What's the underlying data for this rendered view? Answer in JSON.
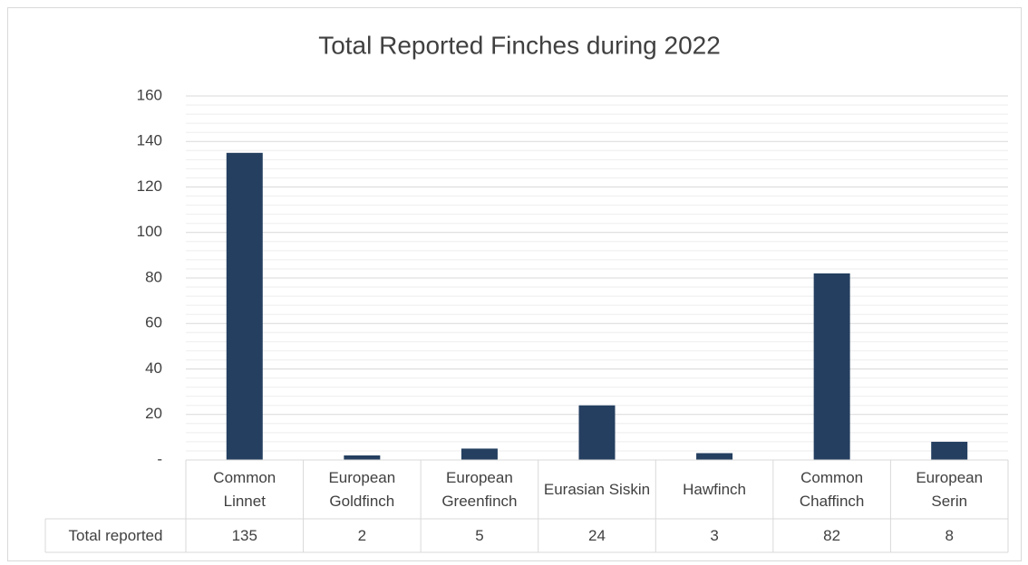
{
  "chart_data": {
    "type": "bar",
    "title": "Total Reported Finches during 2022",
    "categories": [
      "Common Linnet",
      "European Goldfinch",
      "European Greenfinch",
      "Eurasian Siskin",
      "Hawfinch",
      "Common Chaffinch",
      "European Serin"
    ],
    "series": [
      {
        "name": "Total reported",
        "color": "#243F60",
        "values": [
          135,
          2,
          5,
          24,
          3,
          82,
          8
        ]
      }
    ],
    "ylim": [
      0,
      160
    ],
    "yticks": [
      {
        "value": 0,
        "label": "-"
      },
      20,
      40,
      60,
      80,
      100,
      120,
      140,
      160
    ],
    "grid": true,
    "data_table": true
  }
}
